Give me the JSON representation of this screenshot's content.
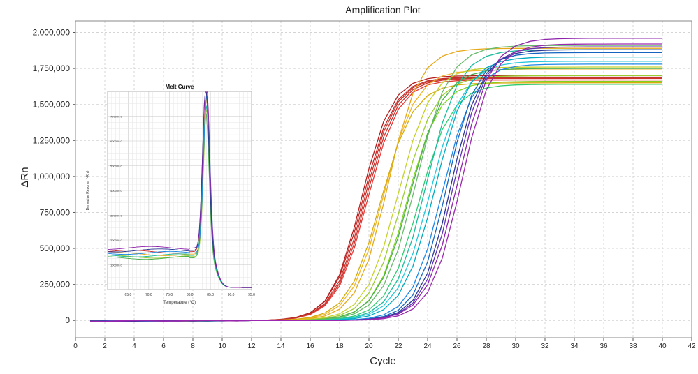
{
  "chart_data": {
    "type": "line",
    "title": "Amplification Plot",
    "xlabel": "Cycle",
    "ylabel": "ΔRn",
    "xlim": [
      0,
      42
    ],
    "ylim": [
      -120000,
      2080000
    ],
    "x_ticks": [
      0,
      2,
      4,
      6,
      8,
      10,
      12,
      14,
      16,
      18,
      20,
      22,
      24,
      26,
      28,
      30,
      32,
      34,
      36,
      38,
      40,
      42
    ],
    "x_tick_labels": [
      "0",
      "2",
      "4",
      "6",
      "8",
      "10",
      "12",
      "14",
      "16",
      "18",
      "20",
      "22",
      "24",
      "26",
      "28",
      "30",
      "32",
      "34",
      "36",
      "38",
      "40",
      "42"
    ],
    "y_ticks": [
      0,
      250000,
      500000,
      750000,
      1000000,
      1250000,
      1500000,
      1750000,
      2000000
    ],
    "y_tick_labels": [
      "0",
      "250,000",
      "500,000",
      "750,000",
      "1,000,000",
      "1,250,000",
      "1,500,000",
      "1,750,000",
      "2,000,000"
    ],
    "grid": true,
    "curve_model": {
      "cycles": [
        1,
        40
      ],
      "form": "logistic",
      "params": [
        "plateau",
        "midpoint_ct",
        "slope"
      ]
    },
    "series": [
      {
        "color": "#c62828",
        "plateau": 1690000,
        "ct": 19.6,
        "k": 0.95
      },
      {
        "color": "#d32f2f",
        "plateau": 1680000,
        "ct": 19.8,
        "k": 0.95
      },
      {
        "color": "#b71c1c",
        "plateau": 1700000,
        "ct": 19.5,
        "k": 0.98
      },
      {
        "color": "#e53935",
        "plateau": 1670000,
        "ct": 19.9,
        "k": 0.94
      },
      {
        "color": "#c0392b",
        "plateau": 1685000,
        "ct": 19.7,
        "k": 0.96
      },
      {
        "color": "#e6a817",
        "plateau": 1890000,
        "ct": 21.3,
        "k": 0.95
      },
      {
        "color": "#f0b429",
        "plateau": 1740000,
        "ct": 21.0,
        "k": 0.92
      },
      {
        "color": "#d4ac0d",
        "plateau": 1650000,
        "ct": 20.8,
        "k": 0.9
      },
      {
        "color": "#c5d22b",
        "plateau": 1760000,
        "ct": 22.0,
        "k": 0.9
      },
      {
        "color": "#9acd32",
        "plateau": 1700000,
        "ct": 22.3,
        "k": 0.9
      },
      {
        "color": "#7ed321",
        "plateau": 1660000,
        "ct": 22.6,
        "k": 0.92
      },
      {
        "color": "#4caf50",
        "plateau": 1750000,
        "ct": 22.8,
        "k": 0.88
      },
      {
        "color": "#66bb6a",
        "plateau": 1910000,
        "ct": 23.2,
        "k": 0.88
      },
      {
        "color": "#2ecc71",
        "plateau": 1640000,
        "ct": 23.4,
        "k": 0.9
      },
      {
        "color": "#1abc9c",
        "plateau": 1880000,
        "ct": 23.9,
        "k": 0.9
      },
      {
        "color": "#26c6da",
        "plateau": 1800000,
        "ct": 24.2,
        "k": 0.88
      },
      {
        "color": "#00acc1",
        "plateau": 1830000,
        "ct": 24.5,
        "k": 0.9
      },
      {
        "color": "#1e88e5",
        "plateau": 1780000,
        "ct": 25.0,
        "k": 0.95
      },
      {
        "color": "#1565c0",
        "plateau": 1860000,
        "ct": 25.3,
        "k": 0.98
      },
      {
        "color": "#283593",
        "plateau": 1880000,
        "ct": 25.6,
        "k": 0.97
      },
      {
        "color": "#5e35b1",
        "plateau": 1900000,
        "ct": 25.8,
        "k": 0.96
      },
      {
        "color": "#8e24aa",
        "plateau": 1960000,
        "ct": 26.1,
        "k": 0.92
      },
      {
        "color": "#9c27b0",
        "plateau": 1920000,
        "ct": 26.3,
        "k": 0.95
      }
    ],
    "inset": {
      "type": "line",
      "title": "Melt Curve",
      "xlabel": "Temperature (°C)",
      "ylabel": "Derivative Reporter (-Rn')",
      "xlim": [
        60,
        95
      ],
      "ylim": [
        0,
        800000
      ],
      "x_ticks": [
        65,
        70,
        75,
        80,
        85,
        90,
        95
      ],
      "x_tick_labels": [
        "65.0",
        "70.0",
        "75.0",
        "80.0",
        "85.0",
        "90.0",
        "95.0"
      ],
      "y_ticks": [
        100000,
        200000,
        300000,
        400000,
        500000,
        600000,
        700000
      ],
      "y_tick_labels": [
        "100000.0",
        "200000.0",
        "300000.0",
        "400000.0",
        "500000.0",
        "600000.0",
        "700000.0"
      ],
      "grid": true,
      "peak_temperature": 84.0,
      "series": [
        {
          "color": "#c62828",
          "base": 145000,
          "peak": 720000
        },
        {
          "color": "#e6a817",
          "base": 135000,
          "peak": 690000
        },
        {
          "color": "#9acd32",
          "base": 125000,
          "peak": 650000
        },
        {
          "color": "#4caf50",
          "base": 120000,
          "peak": 640000
        },
        {
          "color": "#1abc9c",
          "base": 130000,
          "peak": 660000
        },
        {
          "color": "#1e88e5",
          "base": 140000,
          "peak": 700000
        },
        {
          "color": "#283593",
          "base": 150000,
          "peak": 730000
        },
        {
          "color": "#8e24aa",
          "base": 160000,
          "peak": 760000
        }
      ]
    }
  }
}
